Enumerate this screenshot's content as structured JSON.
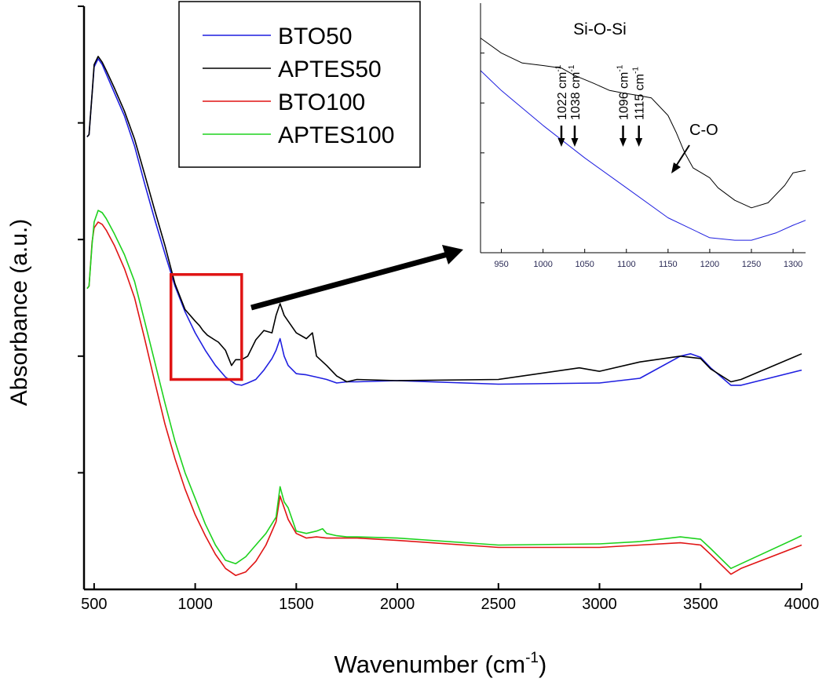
{
  "chart_data": {
    "type": "line",
    "xlabel": "Wavenumber (cm",
    "xlabel_sup": "-1",
    "xlabel_close": ")",
    "ylabel": "Absorbance (a.u.)",
    "xlim": [
      450,
      4000
    ],
    "ylim": [
      0,
      5
    ],
    "xticks": [
      500,
      1000,
      1500,
      2000,
      2500,
      3000,
      3500,
      4000
    ],
    "xtick_labels": [
      "500",
      "1000",
      "1500",
      "2000",
      "2500",
      "3000",
      "3500",
      "4000"
    ],
    "yticks": [
      1,
      2,
      3,
      4,
      5
    ],
    "ytick_labels": [],
    "legend": {
      "placement": "top-left",
      "entries": [
        {
          "label": "BTO50",
          "color": "#1f1fe0"
        },
        {
          "label": "APTES50",
          "color": "#000000"
        },
        {
          "label": "BTO100",
          "color": "#e01414"
        },
        {
          "label": "APTES100",
          "color": "#1ed21e"
        }
      ]
    },
    "series": [
      {
        "name": "BTO50",
        "color": "#1f1fe0",
        "x": [
          465,
          475,
          490,
          500,
          520,
          540,
          560,
          600,
          650,
          700,
          750,
          800,
          850,
          900,
          950,
          1000,
          1050,
          1100,
          1150,
          1200,
          1230,
          1260,
          1300,
          1340,
          1380,
          1400,
          1420,
          1440,
          1460,
          1500,
          1550,
          1600,
          1650,
          1700,
          1750,
          1800,
          2000,
          2500,
          3000,
          3200,
          3400,
          3450,
          3500,
          3550,
          3650,
          3700,
          4000
        ],
        "y": [
          3.88,
          3.9,
          4.25,
          4.48,
          4.55,
          4.5,
          4.42,
          4.26,
          4.06,
          3.8,
          3.48,
          3.17,
          2.88,
          2.6,
          2.38,
          2.2,
          2.05,
          1.92,
          1.82,
          1.76,
          1.75,
          1.77,
          1.8,
          1.88,
          1.98,
          2.05,
          2.15,
          2.0,
          1.92,
          1.85,
          1.84,
          1.82,
          1.8,
          1.77,
          1.78,
          1.78,
          1.79,
          1.76,
          1.77,
          1.81,
          2.0,
          2.02,
          1.99,
          1.9,
          1.75,
          1.75,
          1.88
        ]
      },
      {
        "name": "APTES50",
        "color": "#000000",
        "x": [
          465,
          475,
          490,
          500,
          520,
          540,
          560,
          600,
          650,
          700,
          750,
          800,
          850,
          900,
          950,
          1000,
          1022,
          1038,
          1060,
          1096,
          1115,
          1150,
          1180,
          1200,
          1230,
          1260,
          1300,
          1340,
          1380,
          1400,
          1420,
          1440,
          1460,
          1500,
          1550,
          1580,
          1600,
          1650,
          1700,
          1750,
          1800,
          2000,
          2500,
          2900,
          3000,
          3200,
          3400,
          3500,
          3550,
          3650,
          3700,
          4000
        ],
        "y": [
          3.88,
          3.9,
          4.25,
          4.5,
          4.57,
          4.52,
          4.45,
          4.3,
          4.1,
          3.86,
          3.56,
          3.25,
          2.95,
          2.62,
          2.4,
          2.3,
          2.26,
          2.22,
          2.18,
          2.14,
          2.12,
          2.05,
          1.92,
          1.97,
          1.97,
          2.0,
          2.14,
          2.22,
          2.2,
          2.35,
          2.45,
          2.35,
          2.3,
          2.2,
          2.15,
          2.2,
          2.0,
          1.92,
          1.83,
          1.78,
          1.8,
          1.79,
          1.8,
          1.9,
          1.87,
          1.95,
          2.0,
          1.98,
          1.89,
          1.78,
          1.8,
          2.02
        ]
      },
      {
        "name": "BTO100",
        "color": "#e01414",
        "x": [
          465,
          475,
          490,
          500,
          520,
          540,
          560,
          600,
          650,
          700,
          750,
          800,
          850,
          900,
          950,
          1000,
          1050,
          1100,
          1150,
          1200,
          1250,
          1300,
          1350,
          1400,
          1420,
          1440,
          1460,
          1500,
          1550,
          1600,
          1650,
          1700,
          1750,
          1800,
          2000,
          2500,
          3000,
          3200,
          3400,
          3450,
          3500,
          3550,
          3650,
          3700,
          4000
        ],
        "y": [
          2.58,
          2.6,
          2.98,
          3.1,
          3.15,
          3.13,
          3.08,
          2.95,
          2.75,
          2.5,
          2.15,
          1.78,
          1.42,
          1.12,
          0.86,
          0.64,
          0.46,
          0.3,
          0.18,
          0.12,
          0.15,
          0.24,
          0.38,
          0.58,
          0.8,
          0.7,
          0.6,
          0.48,
          0.44,
          0.45,
          0.44,
          0.44,
          0.44,
          0.44,
          0.42,
          0.36,
          0.36,
          0.38,
          0.4,
          0.39,
          0.38,
          0.3,
          0.13,
          0.18,
          0.38
        ]
      },
      {
        "name": "APTES100",
        "color": "#1ed21e",
        "x": [
          465,
          475,
          490,
          500,
          520,
          540,
          560,
          600,
          650,
          700,
          750,
          800,
          850,
          900,
          950,
          1000,
          1050,
          1100,
          1150,
          1200,
          1250,
          1300,
          1350,
          1400,
          1420,
          1440,
          1460,
          1500,
          1550,
          1600,
          1630,
          1650,
          1700,
          1750,
          1800,
          2000,
          2500,
          3000,
          3200,
          3400,
          3450,
          3500,
          3550,
          3650,
          3700,
          4000
        ],
        "y": [
          2.58,
          2.6,
          2.96,
          3.15,
          3.25,
          3.23,
          3.18,
          3.05,
          2.87,
          2.64,
          2.3,
          1.95,
          1.6,
          1.27,
          1.0,
          0.78,
          0.56,
          0.38,
          0.25,
          0.22,
          0.28,
          0.38,
          0.48,
          0.62,
          0.88,
          0.75,
          0.7,
          0.5,
          0.48,
          0.5,
          0.52,
          0.48,
          0.46,
          0.45,
          0.45,
          0.44,
          0.38,
          0.39,
          0.41,
          0.45,
          0.44,
          0.43,
          0.35,
          0.18,
          0.22,
          0.46
        ]
      }
    ],
    "highlight_box": {
      "x_range": [
        880,
        1230
      ],
      "y_range": [
        1.8,
        2.7
      ],
      "color": "#e01414"
    },
    "inset": {
      "title": "Si-O-Si",
      "xlim": [
        925,
        1315
      ],
      "ylim": [
        0,
        1
      ],
      "xticks": [
        950,
        1000,
        1050,
        1100,
        1150,
        1200,
        1250,
        1300
      ],
      "xtick_labels": [
        "950",
        "1000",
        "1050",
        "1100",
        "1150",
        "1200",
        "1250",
        "1300"
      ],
      "yticks": [
        0.2,
        0.4,
        0.6,
        0.8
      ],
      "annotations": [
        {
          "label": "1022 cm",
          "sup": "-1",
          "x": 1022
        },
        {
          "label": "1038 cm",
          "sup": "-1",
          "x": 1038
        },
        {
          "label": "1096 cm",
          "sup": "-1",
          "x": 1096
        },
        {
          "label": "1115 cm",
          "sup": "-1",
          "x": 1115
        }
      ],
      "co_label": "C-O",
      "co_x": 1155,
      "series": [
        {
          "name": "APTES50",
          "color": "#000000",
          "x": [
            925,
            950,
            975,
            1000,
            1022,
            1038,
            1060,
            1080,
            1096,
            1115,
            1130,
            1150,
            1160,
            1170,
            1180,
            1190,
            1200,
            1210,
            1230,
            1250,
            1270,
            1290,
            1300,
            1315
          ],
          "y": [
            0.86,
            0.8,
            0.76,
            0.75,
            0.74,
            0.71,
            0.68,
            0.65,
            0.64,
            0.63,
            0.62,
            0.55,
            0.48,
            0.4,
            0.34,
            0.32,
            0.3,
            0.26,
            0.21,
            0.18,
            0.2,
            0.27,
            0.32,
            0.33
          ]
        },
        {
          "name": "BTO50",
          "color": "#1f1fe0",
          "x": [
            925,
            950,
            1000,
            1050,
            1100,
            1150,
            1200,
            1230,
            1250,
            1280,
            1300,
            1315
          ],
          "y": [
            0.73,
            0.65,
            0.51,
            0.38,
            0.26,
            0.14,
            0.06,
            0.05,
            0.05,
            0.08,
            0.11,
            0.13
          ]
        }
      ]
    }
  }
}
